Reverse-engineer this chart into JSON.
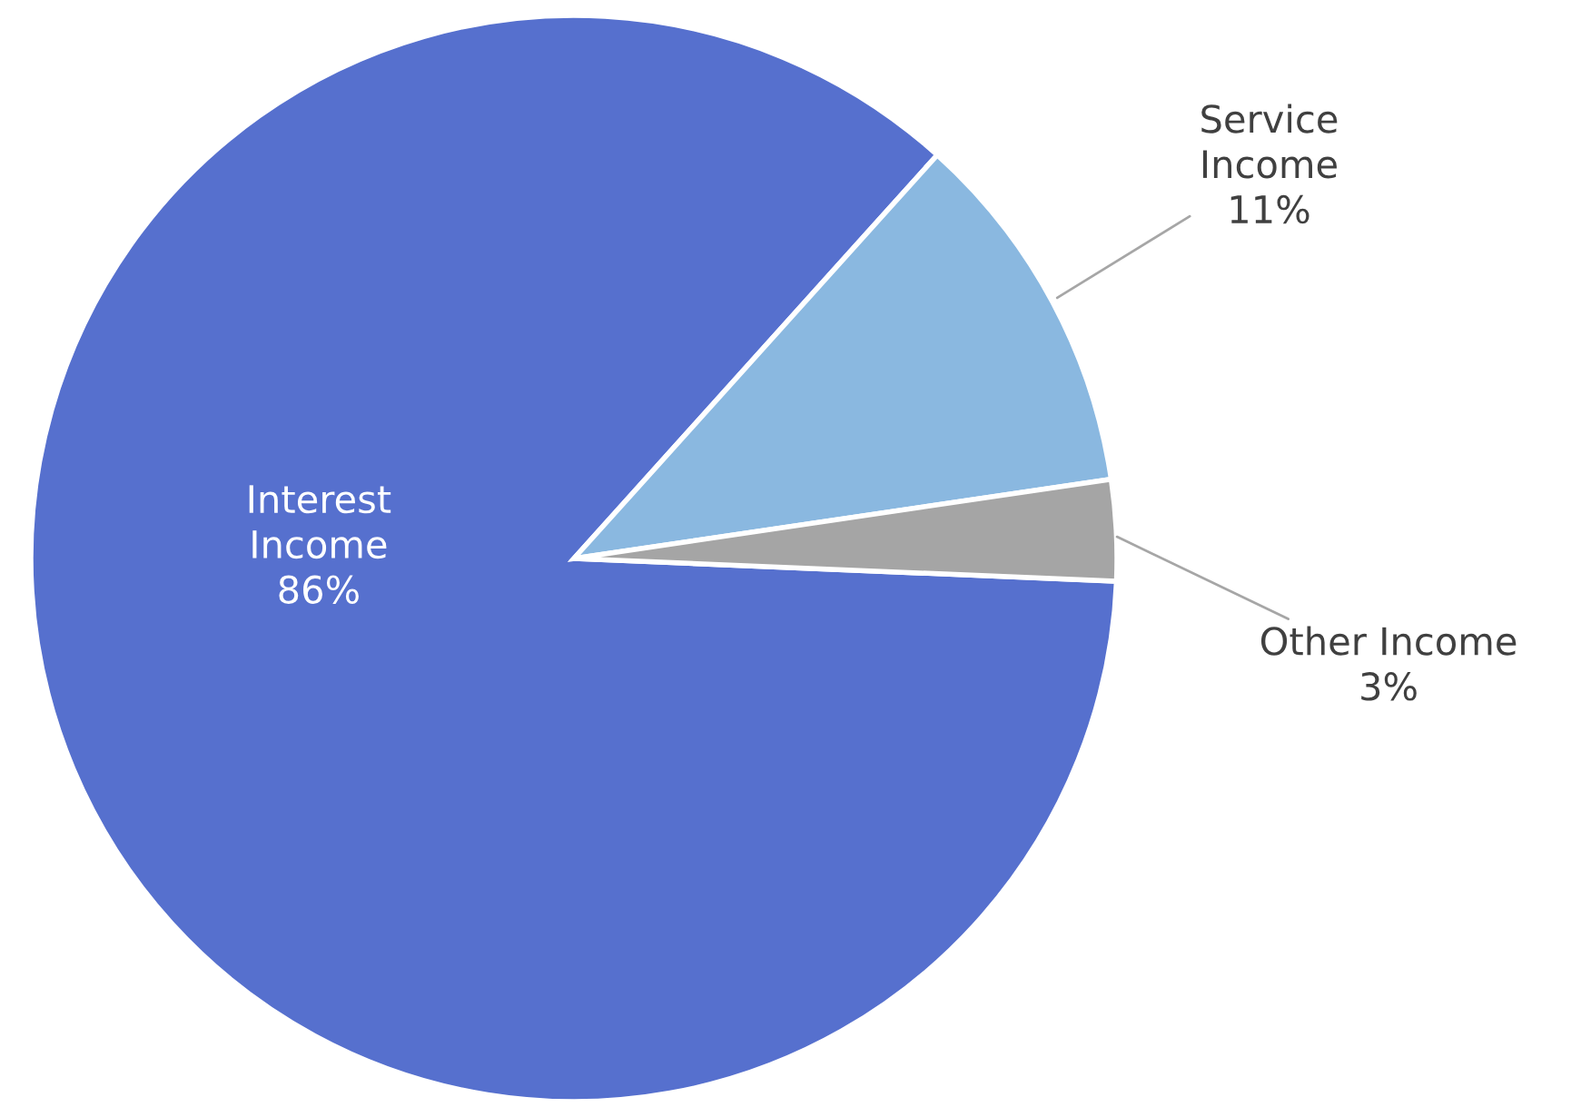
{
  "chart_data": {
    "type": "pie",
    "categories": [
      "Interest Income",
      "Service Income",
      "Other Income"
    ],
    "values": [
      86,
      11,
      3
    ],
    "colors": [
      "#5670ce",
      "#8ab8e0",
      "#a5a5a5"
    ],
    "value_labels": [
      "86%",
      "11%",
      "3%"
    ],
    "legend": false
  }
}
